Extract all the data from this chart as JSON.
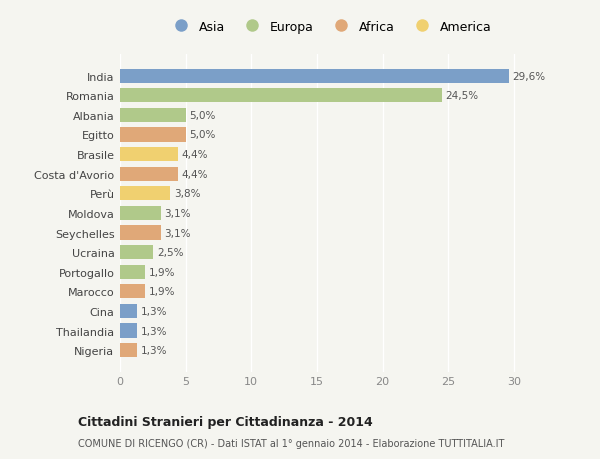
{
  "categories": [
    "Nigeria",
    "Thailandia",
    "Cina",
    "Marocco",
    "Portogallo",
    "Ucraina",
    "Seychelles",
    "Moldova",
    "Perù",
    "Costa d'Avorio",
    "Brasile",
    "Egitto",
    "Albania",
    "Romania",
    "India"
  ],
  "values": [
    1.3,
    1.3,
    1.3,
    1.9,
    1.9,
    2.5,
    3.1,
    3.1,
    3.8,
    4.4,
    4.4,
    5.0,
    5.0,
    24.5,
    29.6
  ],
  "labels": [
    "1,3%",
    "1,3%",
    "1,3%",
    "1,9%",
    "1,9%",
    "2,5%",
    "3,1%",
    "3,1%",
    "3,8%",
    "4,4%",
    "4,4%",
    "5,0%",
    "5,0%",
    "24,5%",
    "29,6%"
  ],
  "continents": [
    "Africa",
    "Asia",
    "Asia",
    "Africa",
    "Europa",
    "Europa",
    "Africa",
    "Europa",
    "America",
    "Africa",
    "America",
    "Africa",
    "Europa",
    "Europa",
    "Asia"
  ],
  "colors": {
    "Asia": "#7b9fc8",
    "Europa": "#b0c98a",
    "Africa": "#e0a878",
    "America": "#f0d070"
  },
  "legend_order": [
    "Asia",
    "Europa",
    "Africa",
    "America"
  ],
  "xlim": [
    0,
    32
  ],
  "xticks": [
    0,
    5,
    10,
    15,
    20,
    25,
    30
  ],
  "title": "Cittadini Stranieri per Cittadinanza - 2014",
  "subtitle": "COMUNE DI RICENGO (CR) - Dati ISTAT al 1° gennaio 2014 - Elaborazione TUTTITALIA.IT",
  "bg_color": "#f5f5f0",
  "bar_height": 0.72
}
